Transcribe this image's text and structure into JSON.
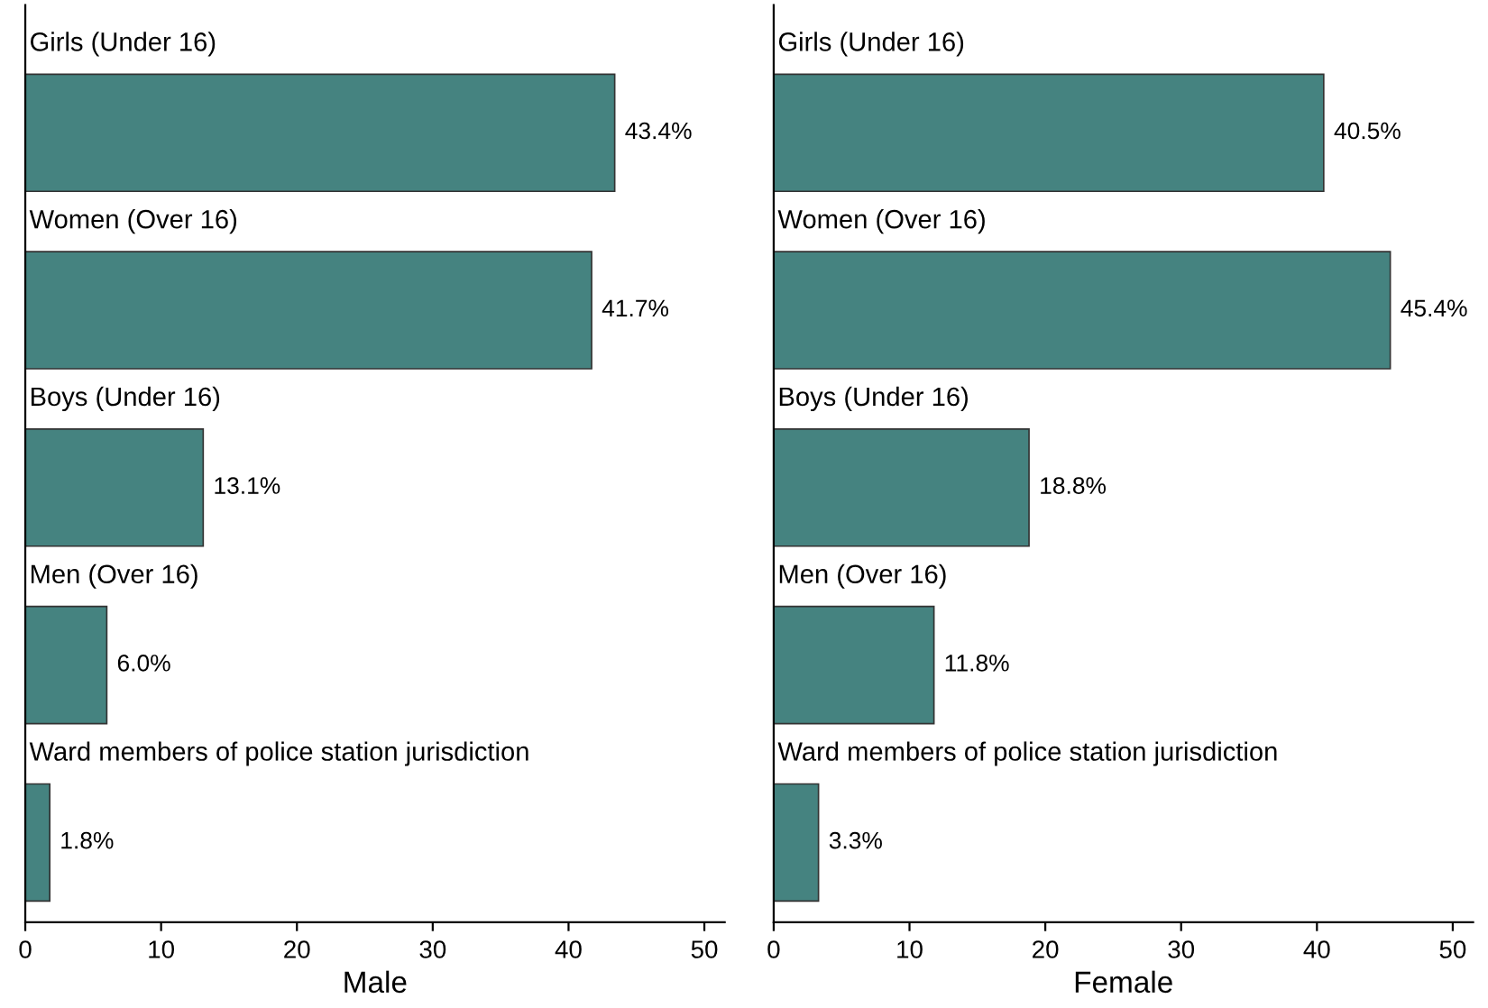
{
  "chart_data": [
    {
      "type": "bar",
      "orientation": "horizontal",
      "xlabel": "Male",
      "categories": [
        "Girls (Under 16)",
        "Women (Over 16)",
        "Boys (Under 16)",
        "Men (Over 16)",
        "Ward members of police station jurisdiction"
      ],
      "values": [
        43.4,
        41.7,
        13.1,
        6.0,
        1.8
      ],
      "value_labels": [
        "43.4%",
        "41.7%",
        "13.1%",
        "6.0%",
        "1.8%"
      ],
      "color": "#458380",
      "xlim": [
        0,
        51.5
      ],
      "xticks": [
        0,
        10,
        20,
        30,
        40,
        50
      ],
      "grid": false,
      "legend": false
    },
    {
      "type": "bar",
      "orientation": "horizontal",
      "xlabel": "Female",
      "categories": [
        "Girls (Under 16)",
        "Women (Over 16)",
        "Boys (Under 16)",
        "Men (Over 16)",
        "Ward members of police station jurisdiction"
      ],
      "values": [
        40.5,
        45.4,
        18.8,
        11.8,
        3.3
      ],
      "value_labels": [
        "40.5%",
        "45.4%",
        "18.8%",
        "11.8%",
        "3.3%"
      ],
      "color": "#458380",
      "xlim": [
        0,
        51.5
      ],
      "xticks": [
        0,
        10,
        20,
        30,
        40,
        50
      ],
      "grid": false,
      "legend": false
    }
  ]
}
